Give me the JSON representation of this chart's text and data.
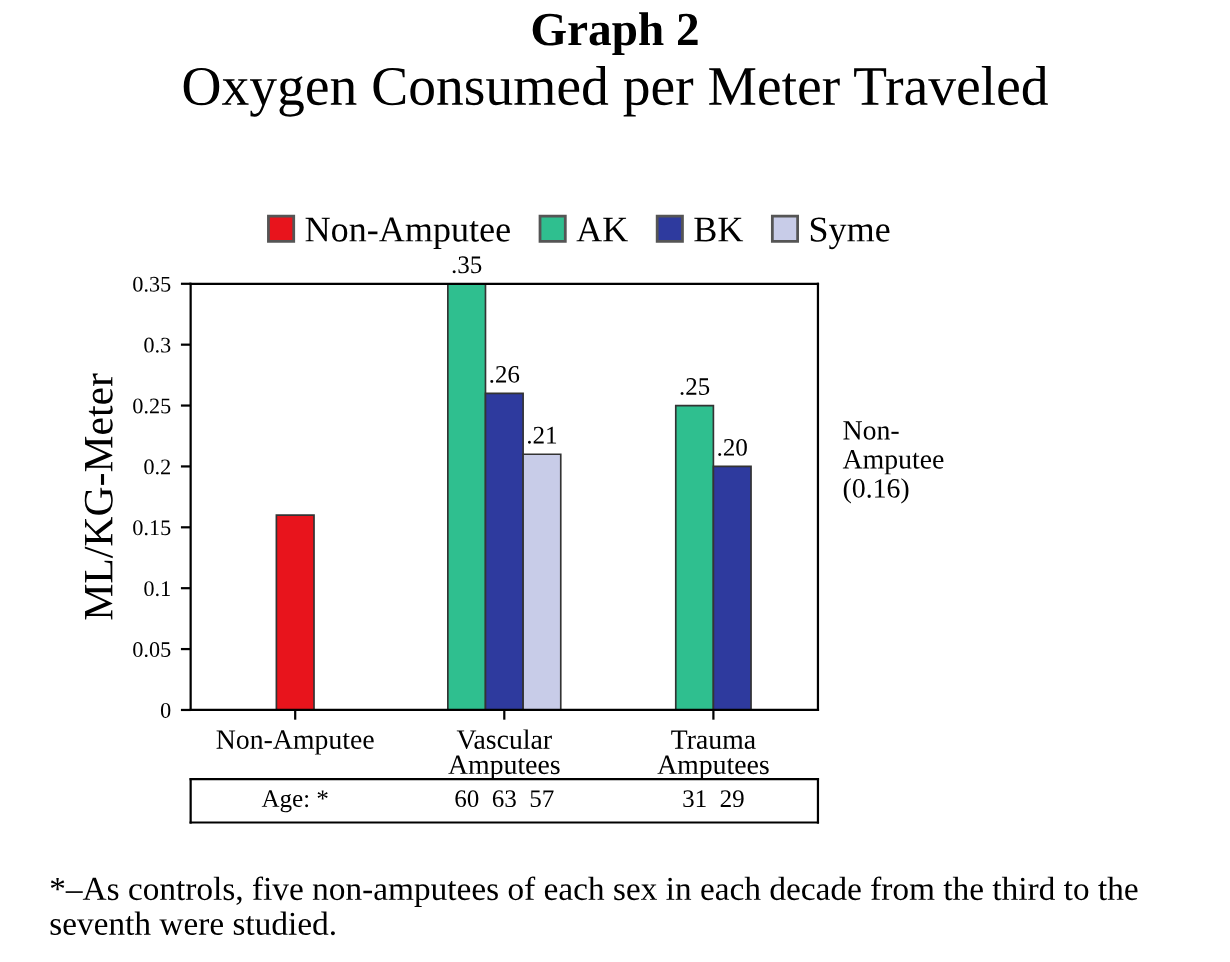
{
  "chart_data": {
    "type": "bar",
    "title": "Graph 2",
    "subtitle": "Oxygen Consumed per Meter Traveled",
    "ylabel": "ML/KG-Meter",
    "categories": [
      "Non-Amputee",
      "Vascular\nAmputees",
      "Trauma\nAmputees"
    ],
    "series": [
      {
        "name": "Non-Amputee",
        "color": "#e8141c",
        "values": [
          0.16,
          null,
          null
        ],
        "value_labels": [
          null,
          null,
          null
        ]
      },
      {
        "name": "AK",
        "color": "#2fbf8f",
        "values": [
          null,
          0.35,
          0.25
        ],
        "value_labels": [
          null,
          ".35",
          ".25"
        ]
      },
      {
        "name": "BK",
        "color": "#2e3a9e",
        "values": [
          null,
          0.26,
          0.2
        ],
        "value_labels": [
          null,
          ".26",
          ".20"
        ]
      },
      {
        "name": "Syme",
        "color": "#c8cce8",
        "values": [
          null,
          0.21,
          null
        ],
        "value_labels": [
          null,
          ".21",
          null
        ]
      }
    ],
    "ylim": [
      0,
      0.35
    ],
    "yticks": [
      0,
      0.05,
      0.1,
      0.15,
      0.2,
      0.25,
      0.3,
      0.35
    ],
    "grid": false,
    "legend": "top",
    "annotations": [
      "Non-\nAmputee\n(0.16)",
      "Age: *",
      "60  63  57",
      "31  29",
      "*–As controls, five non-amputees of each sex in each decade from the third to the seventh were studied."
    ]
  }
}
